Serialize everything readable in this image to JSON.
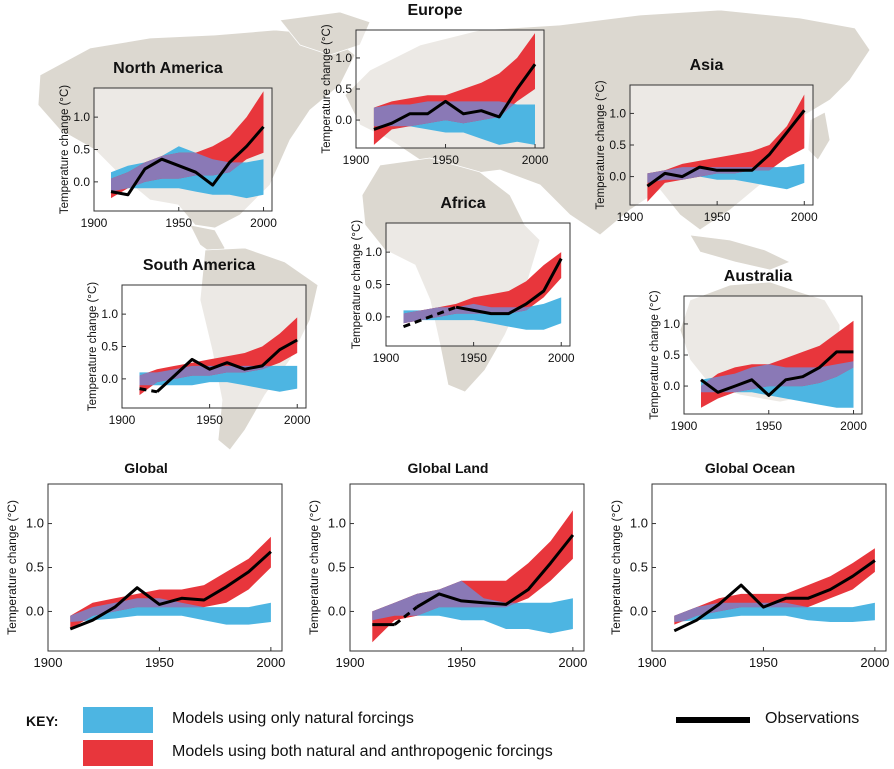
{
  "figure": {
    "ylabel": "Temperature change (°C)",
    "colors": {
      "natural": "#4db5e2",
      "anthropogenic": "#e8363c",
      "overlap": "#8a79b6",
      "observations": "#000000",
      "map": "#dcd8d0",
      "map_lines": "#ffffff"
    }
  },
  "key": {
    "title": "KEY:",
    "natural_label": "Models using only natural forcings",
    "anthro_label": "Models using both natural and anthropogenic forcings",
    "obs_label": "Observations"
  },
  "chart_data": [
    {
      "id": "north-america",
      "type": "area",
      "title": "North America",
      "ylabel": "Temperature change (°C)",
      "xlabel": "",
      "xlim": [
        1900,
        2005
      ],
      "ylim": [
        -0.45,
        1.45
      ],
      "xticks": [
        1900,
        1950,
        2000
      ],
      "yticks": [
        0.0,
        0.5,
        1.0
      ],
      "x": [
        1910,
        1920,
        1930,
        1940,
        1950,
        1960,
        1970,
        1980,
        1990,
        2000
      ],
      "natural_band": {
        "low": [
          -0.15,
          -0.1,
          -0.1,
          -0.1,
          -0.1,
          -0.15,
          -0.2,
          -0.2,
          -0.25,
          -0.2
        ],
        "high": [
          0.15,
          0.25,
          0.3,
          0.4,
          0.55,
          0.45,
          0.35,
          0.3,
          0.3,
          0.35
        ]
      },
      "anthro_band": {
        "low": [
          -0.25,
          -0.1,
          0.0,
          0.05,
          0.05,
          0.1,
          0.1,
          0.15,
          0.35,
          0.45
        ],
        "high": [
          0.05,
          0.15,
          0.3,
          0.4,
          0.45,
          0.45,
          0.55,
          0.7,
          1.0,
          1.4
        ]
      },
      "observations": [
        {
          "x": [
            1910,
            1920,
            1930,
            1940,
            1950,
            1960,
            1970,
            1980,
            1990,
            2000
          ],
          "y": [
            -0.15,
            -0.2,
            0.2,
            0.35,
            0.25,
            0.15,
            -0.05,
            0.3,
            0.55,
            0.85
          ]
        }
      ]
    },
    {
      "id": "europe",
      "type": "area",
      "title": "Europe",
      "ylabel": "Temperature change (°C)",
      "xlabel": "",
      "xlim": [
        1900,
        2005
      ],
      "ylim": [
        -0.45,
        1.45
      ],
      "xticks": [
        1900,
        1950,
        2000
      ],
      "yticks": [
        0.0,
        0.5,
        1.0
      ],
      "x": [
        1910,
        1920,
        1930,
        1940,
        1950,
        1960,
        1970,
        1980,
        1990,
        2000
      ],
      "natural_band": {
        "low": [
          -0.1,
          -0.1,
          -0.1,
          -0.15,
          -0.2,
          -0.2,
          -0.3,
          -0.4,
          -0.35,
          -0.4
        ],
        "high": [
          0.2,
          0.25,
          0.25,
          0.3,
          0.3,
          0.3,
          0.3,
          0.3,
          0.25,
          0.25
        ]
      },
      "anthro_band": {
        "low": [
          -0.4,
          -0.15,
          -0.1,
          -0.05,
          0.0,
          -0.05,
          0.0,
          0.05,
          0.3,
          0.5
        ],
        "high": [
          0.2,
          0.3,
          0.35,
          0.4,
          0.4,
          0.5,
          0.6,
          0.75,
          1.0,
          1.4
        ]
      },
      "observations": [
        {
          "x": [
            1910,
            1920,
            1930,
            1940,
            1950,
            1960,
            1970,
            1980,
            1990,
            2000
          ],
          "y": [
            -0.15,
            -0.05,
            0.1,
            0.1,
            0.3,
            0.1,
            0.15,
            0.05,
            0.5,
            0.9
          ]
        }
      ]
    },
    {
      "id": "asia",
      "type": "area",
      "title": "Asia",
      "ylabel": "Temperature change (°C)",
      "xlabel": "",
      "xlim": [
        1900,
        2005
      ],
      "ylim": [
        -0.45,
        1.45
      ],
      "xticks": [
        1900,
        1950,
        2000
      ],
      "yticks": [
        0.0,
        0.5,
        1.0
      ],
      "x": [
        1910,
        1920,
        1930,
        1940,
        1950,
        1960,
        1970,
        1980,
        1990,
        2000
      ],
      "natural_band": {
        "low": [
          -0.1,
          -0.05,
          -0.05,
          0.0,
          -0.05,
          -0.05,
          -0.1,
          -0.15,
          -0.2,
          -0.1
        ],
        "high": [
          0.05,
          0.1,
          0.15,
          0.15,
          0.15,
          0.15,
          0.15,
          0.15,
          0.15,
          0.2
        ]
      },
      "anthro_band": {
        "low": [
          -0.4,
          -0.1,
          -0.05,
          0.0,
          0.05,
          0.05,
          0.1,
          0.1,
          0.3,
          0.45
        ],
        "high": [
          0.05,
          0.1,
          0.2,
          0.25,
          0.3,
          0.35,
          0.4,
          0.5,
          0.8,
          1.3
        ]
      },
      "observations": [
        {
          "x": [
            1910,
            1920,
            1930,
            1940,
            1950,
            1960,
            1970,
            1980,
            1990,
            2000
          ],
          "y": [
            -0.15,
            0.05,
            0.0,
            0.15,
            0.1,
            0.1,
            0.1,
            0.35,
            0.7,
            1.05
          ]
        }
      ]
    },
    {
      "id": "south-america",
      "type": "area",
      "title": "South America",
      "ylabel": "Temperature change (°C)",
      "xlabel": "",
      "xlim": [
        1900,
        2005
      ],
      "ylim": [
        -0.45,
        1.45
      ],
      "xticks": [
        1900,
        1950,
        2000
      ],
      "yticks": [
        0.0,
        0.5,
        1.0
      ],
      "x": [
        1910,
        1920,
        1930,
        1940,
        1950,
        1960,
        1970,
        1980,
        1990,
        2000
      ],
      "natural_band": {
        "low": [
          -0.1,
          -0.1,
          -0.1,
          -0.1,
          -0.05,
          -0.05,
          -0.1,
          -0.15,
          -0.2,
          -0.15
        ],
        "high": [
          0.1,
          0.1,
          0.15,
          0.2,
          0.2,
          0.2,
          0.2,
          0.2,
          0.2,
          0.2
        ]
      },
      "anthro_band": {
        "low": [
          -0.25,
          -0.05,
          0.0,
          0.05,
          0.05,
          0.1,
          0.1,
          0.15,
          0.25,
          0.4
        ],
        "high": [
          0.05,
          0.15,
          0.2,
          0.25,
          0.3,
          0.35,
          0.4,
          0.5,
          0.7,
          0.95
        ]
      },
      "observations": [
        {
          "x": [
            1910,
            1920
          ],
          "y": [
            -0.15,
            -0.2
          ],
          "style": "dashed"
        },
        {
          "x": [
            1920,
            1930,
            1940,
            1950,
            1960,
            1970,
            1980,
            1990,
            2000
          ],
          "y": [
            -0.2,
            0.05,
            0.3,
            0.15,
            0.25,
            0.15,
            0.2,
            0.45,
            0.6
          ]
        }
      ]
    },
    {
      "id": "africa",
      "type": "area",
      "title": "Africa",
      "ylabel": "Temperature change (°C)",
      "xlabel": "",
      "xlim": [
        1900,
        2005
      ],
      "ylim": [
        -0.45,
        1.45
      ],
      "xticks": [
        1900,
        1950,
        2000
      ],
      "yticks": [
        0.0,
        0.5,
        1.0
      ],
      "x": [
        1910,
        1920,
        1930,
        1940,
        1950,
        1960,
        1970,
        1980,
        1990,
        2000
      ],
      "natural_band": {
        "low": [
          -0.1,
          -0.05,
          -0.05,
          -0.05,
          -0.05,
          -0.1,
          -0.15,
          -0.2,
          -0.2,
          -0.1
        ],
        "high": [
          0.1,
          0.1,
          0.15,
          0.15,
          0.2,
          0.15,
          0.15,
          0.15,
          0.2,
          0.3
        ]
      },
      "anthro_band": {
        "low": [
          -0.1,
          -0.05,
          0.0,
          0.05,
          0.05,
          0.05,
          0.05,
          0.1,
          0.3,
          0.6
        ],
        "high": [
          0.05,
          0.1,
          0.15,
          0.2,
          0.3,
          0.35,
          0.4,
          0.55,
          0.8,
          1.0
        ]
      },
      "observations": [
        {
          "x": [
            1910,
            1920,
            1930,
            1940
          ],
          "y": [
            -0.15,
            -0.05,
            0.05,
            0.15
          ],
          "style": "dashed"
        },
        {
          "x": [
            1940,
            1950,
            1960,
            1970,
            1980,
            1990,
            2000
          ],
          "y": [
            0.15,
            0.1,
            0.05,
            0.05,
            0.2,
            0.4,
            0.9
          ]
        }
      ]
    },
    {
      "id": "australia",
      "type": "area",
      "title": "Australia",
      "ylabel": "Temperature change (°C)",
      "xlabel": "",
      "xlim": [
        1900,
        2005
      ],
      "ylim": [
        -0.45,
        1.45
      ],
      "xticks": [
        1900,
        1950,
        2000
      ],
      "yticks": [
        0.0,
        0.5,
        1.0
      ],
      "x": [
        1910,
        1920,
        1930,
        1940,
        1950,
        1960,
        1970,
        1980,
        1990,
        2000
      ],
      "natural_band": {
        "low": [
          -0.1,
          -0.1,
          -0.1,
          -0.1,
          -0.15,
          -0.2,
          -0.25,
          -0.3,
          -0.35,
          -0.35
        ],
        "high": [
          0.1,
          0.15,
          0.2,
          0.3,
          0.35,
          0.3,
          0.3,
          0.3,
          0.35,
          0.4
        ]
      },
      "anthro_band": {
        "low": [
          -0.35,
          -0.2,
          -0.1,
          -0.05,
          0.0,
          0.0,
          0.0,
          0.05,
          0.15,
          0.3
        ],
        "high": [
          0.0,
          0.2,
          0.3,
          0.35,
          0.35,
          0.45,
          0.55,
          0.65,
          0.85,
          1.05
        ]
      },
      "observations": [
        {
          "x": [
            1910,
            1920,
            1930,
            1940,
            1950,
            1960,
            1970,
            1980,
            1990,
            2000
          ],
          "y": [
            0.1,
            -0.1,
            0.0,
            0.1,
            -0.15,
            0.1,
            0.15,
            0.3,
            0.55,
            0.55
          ]
        }
      ]
    },
    {
      "id": "global",
      "type": "area",
      "title": "Global",
      "ylabel": "Temperature change (°C)",
      "xlabel": "",
      "xlim": [
        1900,
        2005
      ],
      "ylim": [
        -0.45,
        1.45
      ],
      "xticks": [
        1900,
        1950,
        2000
      ],
      "yticks": [
        0.0,
        0.5,
        1.0
      ],
      "x": [
        1910,
        1920,
        1930,
        1940,
        1950,
        1960,
        1970,
        1980,
        1990,
        2000
      ],
      "natural_band": {
        "low": [
          -0.12,
          -0.1,
          -0.08,
          -0.05,
          -0.05,
          -0.05,
          -0.1,
          -0.15,
          -0.15,
          -0.12
        ],
        "high": [
          -0.05,
          0.05,
          0.1,
          0.15,
          0.15,
          0.1,
          0.05,
          0.05,
          0.05,
          0.1
        ]
      },
      "anthro_band": {
        "low": [
          -0.2,
          -0.05,
          0.0,
          0.05,
          0.05,
          0.05,
          0.05,
          0.1,
          0.25,
          0.5
        ],
        "high": [
          -0.05,
          0.1,
          0.15,
          0.2,
          0.25,
          0.25,
          0.3,
          0.45,
          0.6,
          0.85
        ]
      },
      "observations": [
        {
          "x": [
            1910,
            1920,
            1930,
            1940,
            1950,
            1960,
            1970,
            1980,
            1990,
            2000
          ],
          "y": [
            -0.2,
            -0.1,
            0.05,
            0.27,
            0.08,
            0.15,
            0.13,
            0.28,
            0.45,
            0.68
          ]
        }
      ]
    },
    {
      "id": "global-land",
      "type": "area",
      "title": "Global Land",
      "ylabel": "Temperature change (°C)",
      "xlabel": "",
      "xlim": [
        1900,
        2005
      ],
      "ylim": [
        -0.45,
        1.45
      ],
      "xticks": [
        1900,
        1950,
        2000
      ],
      "yticks": [
        0.0,
        0.5,
        1.0
      ],
      "x": [
        1910,
        1920,
        1930,
        1940,
        1950,
        1960,
        1970,
        1980,
        1990,
        2000
      ],
      "natural_band": {
        "low": [
          -0.1,
          -0.05,
          -0.05,
          -0.05,
          -0.1,
          -0.1,
          -0.2,
          -0.2,
          -0.25,
          -0.2
        ],
        "high": [
          0.0,
          0.1,
          0.2,
          0.25,
          0.35,
          0.15,
          0.1,
          0.1,
          0.1,
          0.15
        ]
      },
      "anthro_band": {
        "low": [
          -0.35,
          -0.1,
          -0.05,
          0.05,
          0.05,
          0.05,
          0.05,
          0.15,
          0.35,
          0.6
        ],
        "high": [
          0.0,
          0.1,
          0.2,
          0.25,
          0.35,
          0.35,
          0.35,
          0.55,
          0.8,
          1.15
        ]
      },
      "observations": [
        {
          "x": [
            1910,
            1920
          ],
          "y": [
            -0.15,
            -0.15
          ]
        },
        {
          "x": [
            1920,
            1930
          ],
          "y": [
            -0.15,
            0.05
          ],
          "style": "dashed"
        },
        {
          "x": [
            1930,
            1940,
            1950,
            1960,
            1970,
            1980,
            1990,
            2000
          ],
          "y": [
            0.05,
            0.2,
            0.12,
            0.1,
            0.08,
            0.25,
            0.55,
            0.87
          ]
        }
      ]
    },
    {
      "id": "global-ocean",
      "type": "area",
      "title": "Global Ocean",
      "ylabel": "Temperature change (°C)",
      "xlabel": "",
      "xlim": [
        1900,
        2005
      ],
      "ylim": [
        -0.45,
        1.45
      ],
      "xticks": [
        1900,
        1950,
        2000
      ],
      "yticks": [
        0.0,
        0.5,
        1.0
      ],
      "x": [
        1910,
        1920,
        1930,
        1940,
        1950,
        1960,
        1970,
        1980,
        1990,
        2000
      ],
      "natural_band": {
        "low": [
          -0.12,
          -0.1,
          -0.08,
          -0.05,
          -0.05,
          -0.05,
          -0.1,
          -0.12,
          -0.12,
          -0.1
        ],
        "high": [
          -0.05,
          0.05,
          0.1,
          0.1,
          0.1,
          0.1,
          0.05,
          0.05,
          0.05,
          0.1
        ]
      },
      "anthro_band": {
        "low": [
          -0.15,
          -0.05,
          0.0,
          0.05,
          0.05,
          0.05,
          0.05,
          0.15,
          0.25,
          0.45
        ],
        "high": [
          -0.05,
          0.05,
          0.15,
          0.2,
          0.2,
          0.2,
          0.3,
          0.4,
          0.55,
          0.72
        ]
      },
      "observations": [
        {
          "x": [
            1910,
            1920,
            1930,
            1940,
            1950,
            1960,
            1970,
            1980,
            1990,
            2000
          ],
          "y": [
            -0.22,
            -0.1,
            0.08,
            0.3,
            0.05,
            0.15,
            0.15,
            0.25,
            0.4,
            0.58
          ]
        }
      ]
    }
  ]
}
